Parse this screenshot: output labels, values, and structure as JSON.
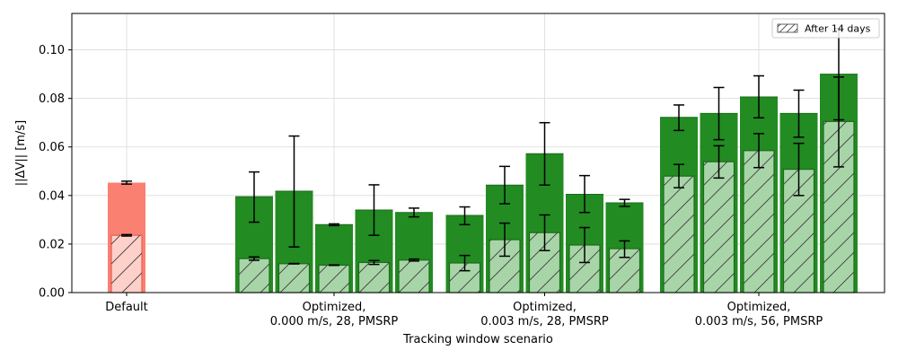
{
  "chart_data": {
    "type": "bar",
    "xlabel": "Tracking window scenario",
    "ylabel": "||ΔV|| [m/s]",
    "ylim": [
      0,
      0.115
    ],
    "yticks": [
      0.0,
      0.02,
      0.04,
      0.06,
      0.08,
      0.1
    ],
    "ytick_labels": [
      "0.00",
      "0.02",
      "0.04",
      "0.06",
      "0.08",
      "0.10"
    ],
    "grid": true,
    "legend": {
      "position": "top-right",
      "entries": [
        "After 14 days"
      ]
    },
    "colors": {
      "default_total": "#fa8072",
      "default_after": "#fdd0c9",
      "optimized_total": "#228b22",
      "optimized_after": "#a8d5a8",
      "optimized_edge": "#1b6b1b",
      "grid": "#d9d9d9"
    },
    "groups": [
      {
        "label": "Default",
        "bars": [
          {
            "total": 0.0453,
            "total_err": [
              0.0447,
              0.0459
            ],
            "after": 0.0236,
            "after_err": [
              0.0233,
              0.0239
            ]
          }
        ]
      },
      {
        "label": "Optimized,\n0.000 m/s, 28, PMSRP",
        "bars": [
          {
            "total": 0.0395,
            "total_err": [
              0.029,
              0.0497
            ],
            "after": 0.014,
            "after_err": [
              0.0133,
              0.0147
            ]
          },
          {
            "total": 0.0418,
            "total_err": [
              0.0188,
              0.0645
            ],
            "after": 0.0119,
            "after_err": [
              0.0118,
              0.012
            ]
          },
          {
            "total": 0.028,
            "total_err": [
              0.0276,
              0.0283
            ],
            "after": 0.0113,
            "after_err": [
              0.0112,
              0.0114
            ]
          },
          {
            "total": 0.034,
            "total_err": [
              0.0236,
              0.0444
            ],
            "after": 0.0124,
            "after_err": [
              0.0116,
              0.0132
            ]
          },
          {
            "total": 0.033,
            "total_err": [
              0.0312,
              0.0348
            ],
            "after": 0.0134,
            "after_err": [
              0.013,
              0.0138
            ]
          }
        ]
      },
      {
        "label": "Optimized,\n0.003 m/s, 28, PMSRP",
        "bars": [
          {
            "total": 0.0318,
            "total_err": [
              0.028,
              0.0353
            ],
            "after": 0.0122,
            "after_err": [
              0.009,
              0.0153
            ]
          },
          {
            "total": 0.0443,
            "total_err": [
              0.0366,
              0.052
            ],
            "after": 0.0218,
            "after_err": [
              0.015,
              0.0286
            ]
          },
          {
            "total": 0.0572,
            "total_err": [
              0.0443,
              0.07
            ],
            "after": 0.0247,
            "after_err": [
              0.0173,
              0.032
            ]
          },
          {
            "total": 0.0405,
            "total_err": [
              0.033,
              0.0482
            ],
            "after": 0.0196,
            "after_err": [
              0.0124,
              0.0268
            ]
          },
          {
            "total": 0.037,
            "total_err": [
              0.0355,
              0.0384
            ],
            "after": 0.0181,
            "after_err": [
              0.0145,
              0.0213
            ]
          }
        ]
      },
      {
        "label": "Optimized,\n0.003 m/s, 56, PMSRP",
        "bars": [
          {
            "total": 0.0722,
            "total_err": [
              0.0668,
              0.0773
            ],
            "after": 0.048,
            "after_err": [
              0.0432,
              0.0528
            ]
          },
          {
            "total": 0.0738,
            "total_err": [
              0.063,
              0.0845
            ],
            "after": 0.0539,
            "after_err": [
              0.0472,
              0.0605
            ]
          },
          {
            "total": 0.0806,
            "total_err": [
              0.072,
              0.0893
            ],
            "after": 0.0585,
            "after_err": [
              0.0515,
              0.0655
            ]
          },
          {
            "total": 0.0738,
            "total_err": [
              0.064,
              0.0834
            ],
            "after": 0.0508,
            "after_err": [
              0.04,
              0.0615
            ]
          },
          {
            "total": 0.09,
            "total_err": [
              0.0712,
              0.1088
            ],
            "after": 0.0705,
            "after_err": [
              0.0518,
              0.0888
            ]
          }
        ]
      }
    ]
  }
}
